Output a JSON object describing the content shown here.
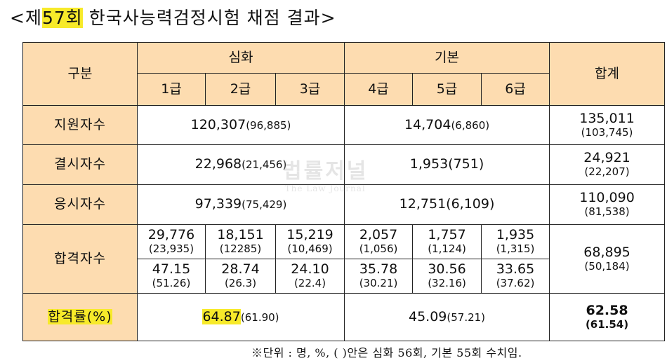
{
  "title": {
    "prefix": "<제",
    "round": "57회",
    "rest": " 한국사능력검정시험 채점 결과>"
  },
  "header": {
    "category": "구분",
    "advanced": "심화",
    "basic": "기본",
    "total": "합계",
    "grades": [
      "1급",
      "2급",
      "3급",
      "4급",
      "5급",
      "6급"
    ]
  },
  "rows": {
    "applicants": {
      "label": "지원자수",
      "advanced": "120,307",
      "advanced_prev": "(96,885)",
      "basic": "14,704",
      "basic_prev": "(6,860)",
      "total": "135,011",
      "total_prev": "(103,745)"
    },
    "absentees": {
      "label": "결시자수",
      "advanced": "22,968",
      "advanced_prev": "(21,456)",
      "basic": "1,953",
      "basic_prev": "(751)",
      "total": "24,921",
      "total_prev": "(22,207)"
    },
    "examinees": {
      "label": "응시자수",
      "advanced": "97,339",
      "advanced_prev": "(75,429)",
      "basic": "12,751",
      "basic_prev": "(6,109)",
      "total": "110,090",
      "total_prev": "(81,538)"
    },
    "passers": {
      "label": "합격자수",
      "counts": [
        "29,776",
        "18,151",
        "15,219",
        "2,057",
        "1,757",
        "1,935"
      ],
      "counts_prev": [
        "(23,935)",
        "(12285)",
        "(10,469)",
        "(1,056)",
        "(1,124)",
        "(1,315)"
      ],
      "rates": [
        "47.15",
        "28.74",
        "24.10",
        "35.78",
        "30.56",
        "33.65"
      ],
      "rates_prev": [
        "(51.26)",
        "(26.3)",
        "(22.4)",
        "(30.21)",
        "(32.16)",
        "(37.62)"
      ],
      "total": "68,895",
      "total_prev": "(50,184)"
    },
    "pass_rate": {
      "label": "합격률(%)",
      "advanced": "64.87",
      "advanced_prev": "(61.90)",
      "basic": "45.09",
      "basic_prev": "(57.21)",
      "total": "62.58",
      "total_prev": "(61.54)"
    }
  },
  "note": "※단위 : 명, %, ( )안은 심화 56회, 기본 55회 수치임.",
  "watermark": {
    "name": "법률저널",
    "sub": "The Law Journal"
  }
}
